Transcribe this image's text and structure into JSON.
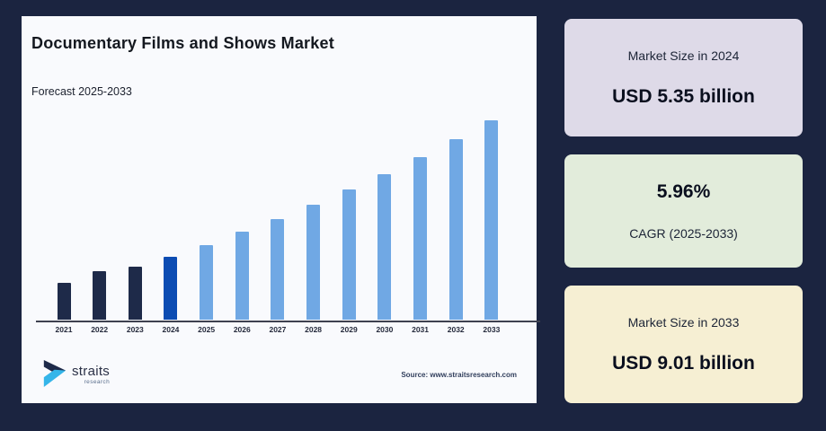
{
  "page": {
    "background": "#1b2440",
    "panel_background": "#f9fafd"
  },
  "chart_panel": {
    "title": "Documentary Films and Shows Market",
    "subtitle": "Forecast 2025-2033",
    "source": "Source: www.straitsresearch.com",
    "logo": {
      "name": "straits",
      "sub": "research"
    }
  },
  "chart_data": {
    "type": "bar",
    "title": "Documentary Films and Shows Market",
    "subtitle": "Forecast 2025-2033",
    "unit": "USD billion",
    "categories": [
      "2021",
      "2022",
      "2023",
      "2024",
      "2025",
      "2026",
      "2027",
      "2028",
      "2029",
      "2030",
      "2031",
      "2032",
      "2033"
    ],
    "values": [
      4.65,
      4.95,
      5.08,
      5.35,
      5.67,
      6.01,
      6.37,
      6.74,
      7.15,
      7.57,
      8.03,
      8.51,
      9.01
    ],
    "roles": [
      "historical",
      "historical",
      "historical",
      "base_year",
      "forecast",
      "forecast",
      "forecast",
      "forecast",
      "forecast",
      "forecast",
      "forecast",
      "forecast",
      "forecast"
    ],
    "colors": {
      "historical": "#1e2a49",
      "base_year": "#0c4cb3",
      "forecast": "#70a8e4"
    },
    "ylim": [
      3.66,
      9.01
    ],
    "grid": false,
    "legend": false,
    "value_labels": false
  },
  "cards": [
    {
      "bg": "#dedae8",
      "line1": "Market Size in 2024",
      "line2": "USD 5.35 billion"
    },
    {
      "bg": "#e2ecdb",
      "line1": "5.96%",
      "line2": "CAGR (2025-2033)"
    },
    {
      "bg": "#f6efd3",
      "line1": "Market Size in 2033",
      "line2": "USD 9.01 billion"
    }
  ]
}
